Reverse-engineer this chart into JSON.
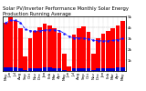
{
  "title": "Solar PV/Inverter Performance Monthly Solar Energy Production Running Average",
  "months": [
    "May",
    "Jun",
    "Jul",
    "Aug",
    "Sep",
    "Oct",
    "Nov",
    "Dec",
    "Jan",
    "Feb",
    "Mar",
    "Apr",
    "May",
    "Jun",
    "Jul",
    "Aug",
    "Sep",
    "Oct",
    "Nov",
    "Dec",
    "Jan",
    "Feb",
    "Mar",
    "Apr",
    "May"
  ],
  "bar_values": [
    440,
    490,
    460,
    390,
    130,
    300,
    370,
    400,
    430,
    420,
    390,
    350,
    155,
    45,
    330,
    390,
    410,
    360,
    155,
    300,
    340,
    365,
    390,
    420,
    460
  ],
  "avg_values": [
    440,
    465,
    463,
    445,
    382,
    368,
    366,
    368,
    374,
    377,
    376,
    370,
    345,
    315,
    304,
    302,
    300,
    295,
    281,
    278,
    274,
    276,
    280,
    287,
    296
  ],
  "small_bar_values": [
    32,
    36,
    33,
    28,
    9,
    21,
    26,
    28,
    31,
    30,
    28,
    25,
    11,
    3,
    23,
    28,
    29,
    25,
    11,
    21,
    24,
    26,
    28,
    30,
    33
  ],
  "bar_color": "#ff0000",
  "avg_color": "#1111ff",
  "small_bar_color": "#0000cc",
  "bg_color": "#ffffff",
  "plot_bg": "#ffffff",
  "grid_color": "#aaaaaa",
  "ylim": [
    0,
    500
  ],
  "y_ticks": [
    100,
    200,
    300,
    400,
    500
  ],
  "y_tick_labels": [
    "1k",
    "2k",
    "3k",
    "4k",
    "5k"
  ],
  "title_fontsize": 3.8,
  "tick_fontsize": 3.0
}
